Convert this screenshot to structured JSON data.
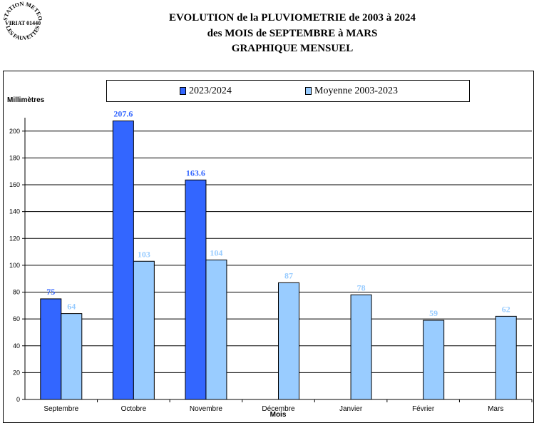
{
  "logo": {
    "line1": "STATION METEO",
    "line2": "VIRIAT 01440",
    "line3": "LES FAUVETTES"
  },
  "title": {
    "line1": "EVOLUTION de la PLUVIOMETRIE de 2003 à 2024",
    "line2": "des MOIS de SEPTEMBRE à MARS",
    "line3": "GRAPHIQUE MENSUEL"
  },
  "colors": {
    "series1": "#3366FF",
    "series2": "#99CCFF",
    "label1": "#3366FF",
    "label2": "#99CCFF"
  },
  "chart_data": {
    "type": "bar",
    "title": "EVOLUTION de la PLUVIOMETRIE de 2003 à 2024 des MOIS de SEPTEMBRE à MARS GRAPHIQUE MENSUEL",
    "xlabel": "Mois",
    "ylabel": "Millimètres",
    "ylim": [
      0,
      210
    ],
    "yticks": [
      0,
      20,
      40,
      60,
      80,
      100,
      120,
      140,
      160,
      180,
      200
    ],
    "grid": true,
    "legend_position": "top",
    "categories": [
      "Septembre",
      "Octobre",
      "Novembre",
      "Décembre",
      "Janvier",
      "Février",
      "Mars"
    ],
    "series": [
      {
        "name": "2023/2024",
        "values": [
          75,
          207.6,
          163.6,
          null,
          null,
          null,
          null
        ],
        "labels": [
          "75",
          "207.6",
          "163.6",
          null,
          null,
          null,
          null
        ]
      },
      {
        "name": "Moyenne 2003-2023",
        "values": [
          64,
          103,
          104,
          87,
          78,
          59,
          62
        ],
        "labels": [
          "64",
          "103",
          "104",
          "87",
          "78",
          "59",
          "62"
        ]
      }
    ]
  }
}
